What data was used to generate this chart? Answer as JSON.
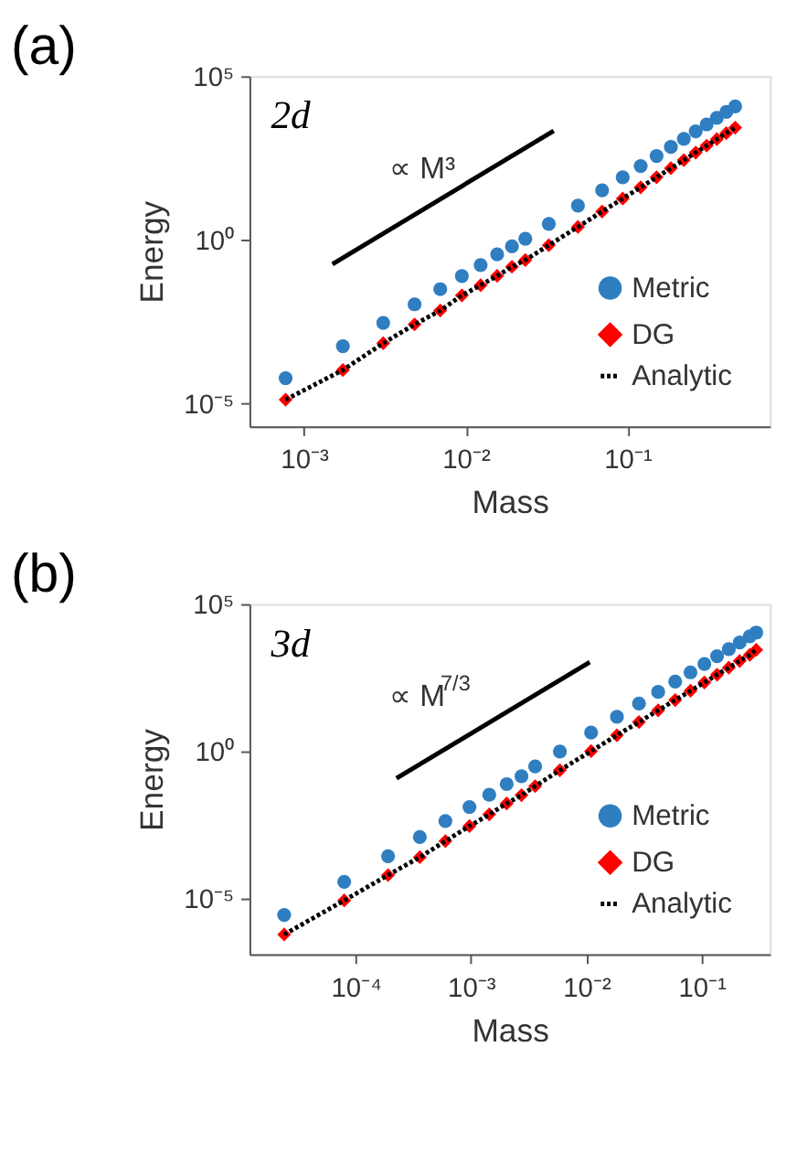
{
  "chart_data": [
    {
      "type": "scatter",
      "title": "(a)",
      "xlabel": "Mass",
      "ylabel": "Energy",
      "log": "xy",
      "grid": false,
      "legend": "bottom right",
      "xlim": [
        0.00046,
        0.76
      ],
      "ylim": [
        2e-06,
        100000
      ],
      "xticks": [
        {
          "value": 0.001,
          "label": "10⁻³"
        },
        {
          "value": 0.01,
          "label": "10⁻²"
        },
        {
          "value": 0.1,
          "label": "10⁻¹"
        }
      ],
      "yticks": [
        {
          "value": 1e-05,
          "label": "10⁻⁵"
        },
        {
          "value": 1,
          "label": "10⁰"
        },
        {
          "value": 100000,
          "label": "10⁵"
        }
      ],
      "annotations": [
        "2d",
        "∝ M³"
      ],
      "series": [
        {
          "name": "Metric",
          "color": "#2f7ec1",
          "marker": "circle",
          "x": [
            0.00077,
            0.00174,
            0.00309,
            0.00483,
            0.00696,
            0.00947,
            0.01237,
            0.01565,
            0.01932,
            0.02338,
            0.03265,
            0.04946,
            0.06975,
            0.09352,
            0.1208,
            0.1515,
            0.1857,
            0.2234,
            0.2645,
            0.3091,
            0.3573,
            0.4088,
            0.4639
          ],
          "values": [
            5.9e-05,
            0.00056,
            0.0029,
            0.0107,
            0.031,
            0.078,
            0.17,
            0.36,
            0.63,
            1.07,
            3.05,
            11.1,
            32.7,
            81,
            180,
            364,
            689,
            1220,
            2070,
            3370,
            5300,
            8090,
            11900
          ]
        },
        {
          "name": "DG",
          "color": "#ff0000",
          "marker": "diamond",
          "x": [
            0.00077,
            0.00174,
            0.00309,
            0.00483,
            0.00696,
            0.00947,
            0.01237,
            0.01565,
            0.01932,
            0.02338,
            0.03265,
            0.04946,
            0.06975,
            0.09352,
            0.1208,
            0.1515,
            0.1857,
            0.2234,
            0.2645,
            0.3091,
            0.3573,
            0.4088,
            0.4639
          ],
          "values": [
            1.3e-05,
            0.000105,
            0.00069,
            0.0026,
            0.0069,
            0.02,
            0.041,
            0.079,
            0.15,
            0.24,
            0.683,
            2.48,
            7.33,
            18.2,
            40.3,
            81.5,
            154,
            273,
            464,
            755,
            1190,
            1810,
            2670
          ]
        },
        {
          "name": "Analytic",
          "type": "line",
          "color": "#000000",
          "line_style": "dotted",
          "x": [
            0.00077,
            0.00174,
            0.00309,
            0.00483,
            0.00696,
            0.00947,
            0.01237,
            0.01565,
            0.01932,
            0.02338,
            0.03265,
            0.04946,
            0.06975,
            0.09352,
            0.1208,
            0.1515,
            0.1857,
            0.2234,
            0.2645,
            0.3091,
            0.3573,
            0.4088,
            0.4639
          ],
          "values": [
            1.3e-05,
            0.000105,
            0.00069,
            0.0026,
            0.0069,
            0.02,
            0.041,
            0.079,
            0.15,
            0.24,
            0.683,
            2.48,
            7.33,
            18.2,
            40.3,
            81.5,
            154,
            273,
            464,
            755,
            1190,
            1810,
            2670
          ]
        },
        {
          "type": "line",
          "color": "#000000",
          "line_style": "solid",
          "x": [
            0.0015,
            0.035
          ],
          "values": [
            0.18,
            2140
          ]
        }
      ]
    },
    {
      "type": "scatter",
      "title": "(b)",
      "xlabel": "Mass",
      "ylabel": "Energy",
      "log": "xy",
      "grid": false,
      "legend": "bottom right",
      "xlim": [
        1.2e-05,
        0.39
      ],
      "ylim": [
        1.2e-07,
        100000
      ],
      "xticks": [
        {
          "value": 0.0001,
          "label": "10⁻⁴"
        },
        {
          "value": 0.001,
          "label": "10⁻³"
        },
        {
          "value": 0.01,
          "label": "10⁻²"
        },
        {
          "value": 0.1,
          "label": "10⁻¹"
        }
      ],
      "yticks": [
        {
          "value": 1e-05,
          "label": "10⁻⁵"
        },
        {
          "value": 1,
          "label": "10⁰"
        },
        {
          "value": 100000,
          "label": "10⁵"
        }
      ],
      "annotations": [
        "3d",
        "∝ M$^{7/3}$"
      ],
      "series": [
        {
          "name": "Metric",
          "color": "#2f7ec1",
          "marker": "circle",
          "x": [
            2.4e-05,
            7.96e-05,
            0.000191,
            0.00036,
            0.0006,
            0.00097,
            0.00144,
            0.00204,
            0.00274,
            0.0036,
            0.0059,
            0.011,
            0.01842,
            0.0286,
            0.04196,
            0.05895,
            0.08001,
            0.1056,
            0.136,
            0.1719,
            0.2135,
            0.2614,
            0.297
          ],
          "values": [
            2.6e-06,
            3.5e-05,
            0.00026,
            0.00117,
            0.0041,
            0.0123,
            0.032,
            0.074,
            0.138,
            0.295,
            0.95,
            4.2,
            14.4,
            40.9,
            102,
            230,
            473,
            914,
            1680,
            2920,
            4900,
            7940,
            10700
          ]
        },
        {
          "name": "DG",
          "color": "#ff0000",
          "marker": "diamond",
          "x": [
            2.4e-05,
            7.96e-05,
            0.000191,
            0.00036,
            0.0006,
            0.00097,
            0.00144,
            0.00204,
            0.00274,
            0.0036,
            0.0059,
            0.011,
            0.01842,
            0.0286,
            0.04196,
            0.05895,
            0.08001,
            0.1056,
            0.136,
            0.1719,
            0.2135,
            0.2614,
            0.297
          ],
          "values": [
            5.6e-07,
            8.1e-06,
            5.9e-05,
            0.00024,
            0.00085,
            0.00275,
            0.0069,
            0.0162,
            0.031,
            0.063,
            0.22,
            0.98,
            3.4,
            9.6,
            24,
            54,
            111,
            214,
            393,
            683,
            1150,
            1860,
            2750
          ]
        },
        {
          "name": "Analytic",
          "type": "line",
          "color": "#000000",
          "line_style": "dotted",
          "x": [
            2.4e-05,
            7.96e-05,
            0.000191,
            0.00036,
            0.0006,
            0.00097,
            0.00144,
            0.00204,
            0.00274,
            0.0036,
            0.0059,
            0.011,
            0.01842,
            0.0286,
            0.04196,
            0.05895,
            0.08001,
            0.1056,
            0.136,
            0.1719,
            0.2135,
            0.2614,
            0.297
          ],
          "values": [
            5.6e-07,
            8.1e-06,
            5.9e-05,
            0.00024,
            0.00085,
            0.00275,
            0.0069,
            0.0162,
            0.031,
            0.063,
            0.22,
            0.98,
            3.4,
            9.6,
            24,
            54,
            111,
            214,
            393,
            683,
            1150,
            1860,
            2750
          ]
        },
        {
          "type": "line",
          "color": "#000000",
          "line_style": "solid",
          "x": [
            0.000226,
            0.0107
          ],
          "values": [
            0.117,
            1050
          ]
        }
      ]
    }
  ]
}
